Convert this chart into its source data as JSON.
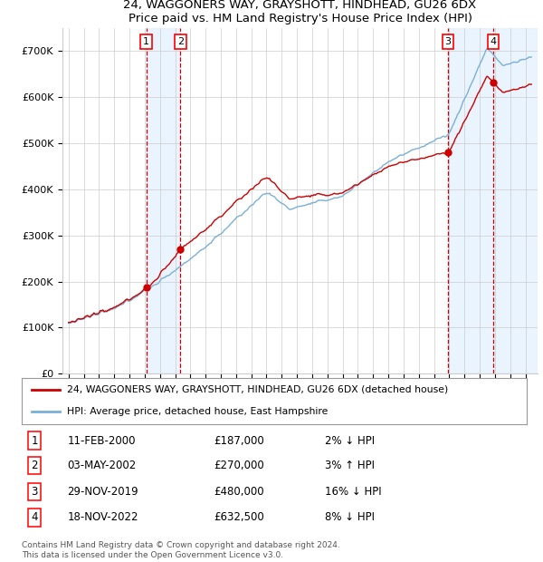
{
  "title": "24, WAGGONERS WAY, GRAYSHOTT, HINDHEAD, GU26 6DX",
  "subtitle": "Price paid vs. HM Land Registry's House Price Index (HPI)",
  "ylim": [
    0,
    750000
  ],
  "yticks": [
    0,
    100000,
    200000,
    300000,
    400000,
    500000,
    600000,
    700000
  ],
  "ytick_labels": [
    "£0",
    "£100K",
    "£200K",
    "£300K",
    "£400K",
    "£500K",
    "£600K",
    "£700K"
  ],
  "sale_dates_num": [
    2000.11,
    2002.34,
    2019.91,
    2022.88
  ],
  "sale_prices": [
    187000,
    270000,
    480000,
    632500
  ],
  "sale_labels": [
    "1",
    "2",
    "3",
    "4"
  ],
  "hpi_color": "#7ab0d8",
  "price_color": "#cc0000",
  "legend_price_label": "24, WAGGONERS WAY, GRAYSHOTT, HINDHEAD, GU26 6DX (detached house)",
  "legend_hpi_label": "HPI: Average price, detached house, East Hampshire",
  "table_entries": [
    {
      "num": "1",
      "date": "11-FEB-2000",
      "price": "£187,000",
      "hpi": "2% ↓ HPI"
    },
    {
      "num": "2",
      "date": "03-MAY-2002",
      "price": "£270,000",
      "hpi": "3% ↑ HPI"
    },
    {
      "num": "3",
      "date": "29-NOV-2019",
      "price": "£480,000",
      "hpi": "16% ↓ HPI"
    },
    {
      "num": "4",
      "date": "18-NOV-2022",
      "price": "£632,500",
      "hpi": "8% ↓ HPI"
    }
  ],
  "footer": "Contains HM Land Registry data © Crown copyright and database right 2024.\nThis data is licensed under the Open Government Licence v3.0.",
  "bg_color": "#ffffff",
  "grid_color": "#cccccc",
  "shade_color": "#ddeeff"
}
